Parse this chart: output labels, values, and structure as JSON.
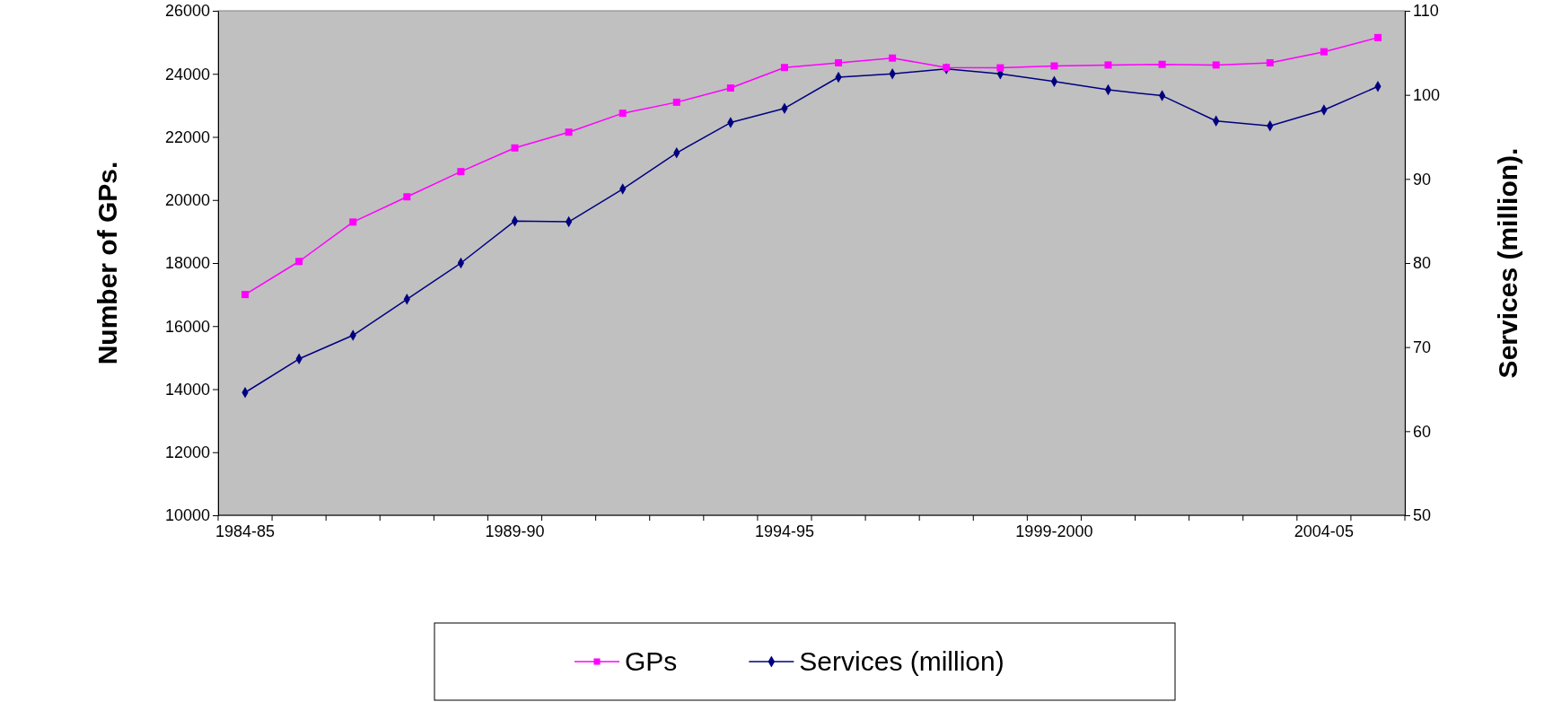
{
  "chart_data": {
    "type": "line",
    "ylabel": "Number of GPs.",
    "y2label": "Services (million).",
    "categories": [
      "1984-85",
      null,
      null,
      null,
      null,
      "1989-90",
      null,
      null,
      null,
      null,
      "1994-95",
      null,
      null,
      null,
      null,
      "1999-2000",
      null,
      null,
      null,
      null,
      "2004-05",
      null
    ],
    "series": [
      {
        "name": "GPs",
        "color": "#ff00ff",
        "marker": "square",
        "values": [
          17000,
          18050,
          19300,
          20100,
          20900,
          21650,
          22150,
          22750,
          23100,
          23550,
          24200,
          24350,
          24500,
          24200,
          24190,
          24250,
          24280,
          24300,
          24280,
          24350,
          24700,
          25150
        ]
      },
      {
        "name": "Services  (million)",
        "color": "#000080",
        "marker": "diamond",
        "axis": "y2",
        "values": [
          64.6,
          68.6,
          71.4,
          75.7,
          80,
          85,
          84.9,
          88.8,
          93.1,
          96.7,
          98.4,
          102.1,
          102.5,
          103.1,
          102.5,
          101.6,
          100.6,
          99.9,
          96.9,
          96.3,
          98.2,
          101
        ]
      }
    ],
    "ylim": [
      10000,
      26000
    ],
    "yticks": [
      10000,
      12000,
      14000,
      16000,
      18000,
      20000,
      22000,
      24000,
      26000
    ],
    "y2lim": [
      50,
      110
    ],
    "y2ticks": [
      50,
      60,
      70,
      80,
      90,
      100,
      110
    ],
    "grid": false,
    "legend": "bottom",
    "line_style": "solid"
  }
}
